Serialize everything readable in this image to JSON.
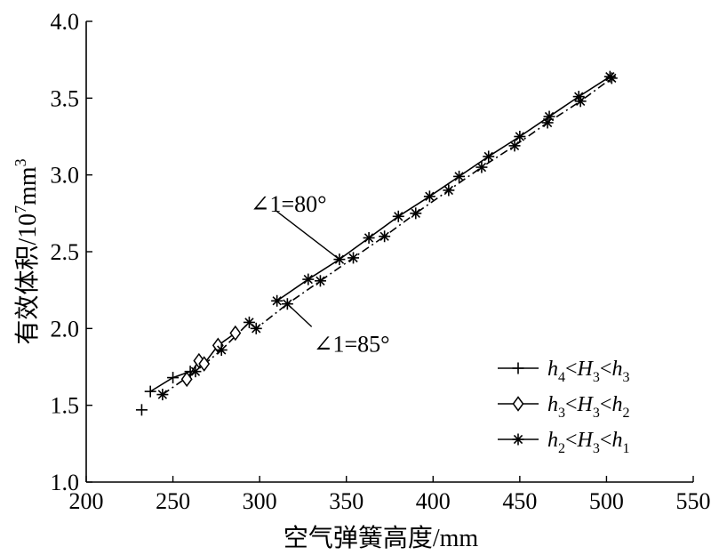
{
  "chart_data": {
    "type": "line",
    "title": "",
    "xlabel": "空气弹簧高度/mm",
    "ylabel": {
      "main": "有效体积/10",
      "sup1": "7",
      "unit": "mm",
      "sup2": "3"
    },
    "xlim": [
      200,
      550
    ],
    "ylim": [
      1.0,
      4.0
    ],
    "xticks": [
      200,
      250,
      300,
      350,
      400,
      450,
      500,
      550
    ],
    "yticks": [
      1.0,
      1.5,
      2.0,
      2.5,
      3.0,
      3.5,
      4.0
    ],
    "xtick_labels": [
      "200",
      "250",
      "300",
      "350",
      "400",
      "450",
      "500",
      "550"
    ],
    "ytick_labels": [
      "1.0",
      "1.5",
      "2.0",
      "2.5",
      "3.0",
      "3.5",
      "4.0"
    ],
    "grid": false,
    "legend_position": "bottom-right",
    "annotations": [
      {
        "text": "∠1=80°",
        "point": [
          346,
          2.45
        ],
        "label_at": [
          310,
          2.75
        ]
      },
      {
        "text": "∠1=85°",
        "point": [
          316,
          2.16
        ],
        "label_at": [
          330,
          1.93
        ]
      }
    ],
    "series": [
      {
        "name": {
          "h_a": "h",
          "s_a": "4",
          "lt1": "<",
          "h_b": "H",
          "s_b": "3",
          "lt2": "<",
          "h_c": "h",
          "s_c": "3"
        },
        "marker": "plus",
        "line": "solid",
        "x": [
          237,
          250,
          260
        ],
        "y": [
          1.59,
          1.68,
          1.72
        ]
      },
      {
        "name": {
          "h_a": "h",
          "s_a": "3",
          "lt1": "<",
          "h_b": "H",
          "s_b": "3",
          "lt2": "<",
          "h_c": "h",
          "s_c": "2"
        },
        "marker": "diamond",
        "line": "solid",
        "x": [
          258,
          265,
          268,
          276,
          286
        ],
        "y": [
          1.67,
          1.79,
          1.77,
          1.89,
          1.97
        ]
      },
      {
        "name": {
          "h_a": "h",
          "s_a": "2",
          "lt1": "<",
          "h_b": "H",
          "s_b": "3",
          "lt2": "<",
          "h_c": "h",
          "s_c": "1"
        },
        "marker": "asterisk",
        "line": "dashdot",
        "x": [
          244,
          263,
          278,
          294,
          298,
          316,
          335,
          354,
          372,
          390,
          409,
          428,
          447,
          466,
          485,
          503
        ],
        "y": [
          1.57,
          1.72,
          1.86,
          2.04,
          2.0,
          2.16,
          2.31,
          2.46,
          2.6,
          2.75,
          2.9,
          3.05,
          3.19,
          3.34,
          3.48,
          3.63
        ]
      },
      {
        "name": "",
        "marker": "asterisk",
        "line": "solid",
        "x": [
          310,
          328,
          346,
          363,
          380,
          398,
          415,
          432,
          450,
          467,
          484,
          502
        ],
        "y": [
          2.18,
          2.32,
          2.45,
          2.59,
          2.73,
          2.86,
          2.99,
          3.12,
          3.25,
          3.38,
          3.51,
          3.64
        ]
      },
      {
        "name": "",
        "marker": "plus",
        "line": "none",
        "x": [
          232
        ],
        "y": [
          1.47
        ]
      }
    ]
  }
}
